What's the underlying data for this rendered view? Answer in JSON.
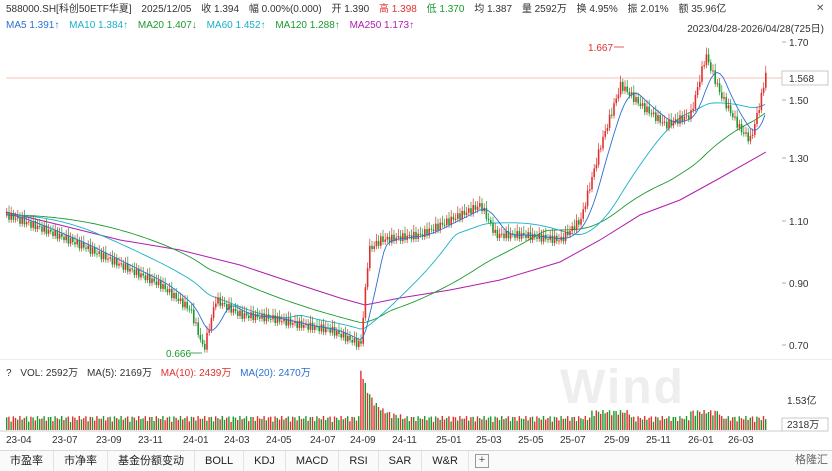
{
  "header": {
    "code": "588000.SH[科创50ETF华夏]",
    "date": "2025/12/05",
    "close": "收 1.394",
    "change": "幅 0.00%(0.000)",
    "open": "开 1.390",
    "high": "高 1.398",
    "low": "低 1.370",
    "avg": "均 1.387",
    "volume": "量 2592万",
    "turnover": "换 4.95%",
    "amplitude": "振 2.01%",
    "amount": "额 35.96亿"
  },
  "ma_line": {
    "ma5": "MA5 1.391↑",
    "ma10": "MA10 1.384↑",
    "ma20": "MA20 1.407↓",
    "ma60": "MA60 1.452↑",
    "ma120": "MA120 1.288↑",
    "ma250": "MA250 1.173↑"
  },
  "date_range": "2023/04/28-2026/04/28(725日)",
  "price_axis": [
    "1.70",
    "1.50",
    "1.30",
    "1.10",
    "0.90",
    "0.70"
  ],
  "last_price": "1.568",
  "annotations": {
    "high": "1.667",
    "low": "0.666"
  },
  "volume_header": {
    "q": "?",
    "vol": "VOL: 2592万",
    "ma5": "MA(5): 2169万",
    "ma10": "MA(10): 2439万",
    "ma20": "MA(20): 2470万"
  },
  "volume_axis": {
    "top": "1.53亿",
    "last": "2318万"
  },
  "x_axis": [
    "23-04",
    "23-07",
    "23-09",
    "23-11",
    "24-01",
    "24-03",
    "24-05",
    "24-07",
    "24-09",
    "24-11",
    "25-01",
    "25-03",
    "25-05",
    "25-07",
    "25-09",
    "25-11",
    "26-01",
    "26-03"
  ],
  "tabs": [
    "市盈率",
    "市净率",
    "基金份额变动",
    "BOLL",
    "KDJ",
    "MACD",
    "RSI",
    "SAR",
    "W&R"
  ],
  "tab_plus": "+",
  "watermark": "Wind",
  "brand": "格隆汇",
  "colors": {
    "up": "#e0302e",
    "down": "#1a9a2c",
    "ma5": "#2a6fd1",
    "ma10": "#18b0c8",
    "ma20": "#1a9a2c",
    "ma250": "#b01cb0"
  }
}
